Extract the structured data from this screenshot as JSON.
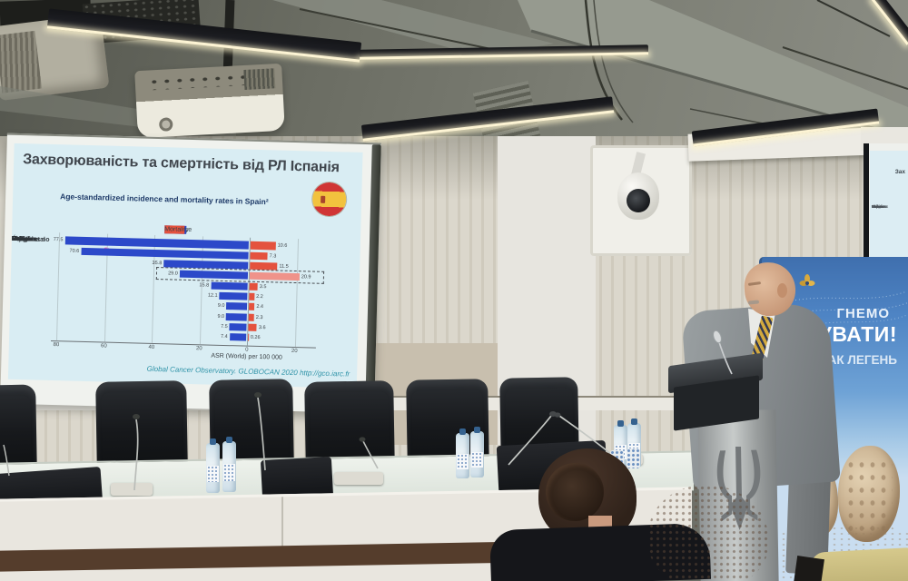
{
  "slide": {
    "title": "Захворюваність та смертність від РЛ Іспанія",
    "subtitle": "Age-standardized incidence and mortality rates in Spain²",
    "citation": "Global Cancer Observatory. GLOBOCAN 2020 http://gco.iarc.fr",
    "flag_icon": "spain-flag",
    "colors": {
      "slide_bg": "#d9edf3",
      "title": "#40464d",
      "subtitle": "#1e3a68",
      "citation": "#2f93a8"
    }
  },
  "chart_data": {
    "type": "bar",
    "orientation": "horizontal-diverging",
    "categories": [
      "Mama",
      "Próstata",
      "Colorrectal",
      "Pulmón",
      "Vejiga",
      "Útero",
      "Riñón",
      "Linfomas no Hodgkin",
      "Ovario",
      "Tiroides"
    ],
    "series": [
      {
        "name": "Incidence",
        "color": "#2c49c9",
        "values": [
          77.5,
          70.6,
          35.8,
          29.0,
          15.8,
          12.1,
          9.0,
          9.0,
          7.5,
          7.4
        ],
        "labels": [
          "77.5",
          "70.6",
          "35.8",
          "29.0",
          "15.8",
          "12.1",
          "9.0",
          "9.0",
          "7.5",
          "7.4"
        ]
      },
      {
        "name": "Mortality",
        "color": "#e4523e",
        "values": [
          10.6,
          7.3,
          11.5,
          20.9,
          3.5,
          2.2,
          2.4,
          2.3,
          3.6,
          0.26
        ],
        "labels": [
          "10.6",
          "7.3",
          "11.5",
          "20.9",
          "3.5",
          "2.2",
          "2.4",
          "2.3",
          "3.6",
          "0.26"
        ]
      }
    ],
    "highlight_category": "Pulmón",
    "highlight_color": "#ef938a",
    "xlabel": "ASR (World) per 100 000",
    "tick_labels": [
      "80",
      "60",
      "40",
      "20",
      "0",
      "20"
    ],
    "tick_positions": [
      -80,
      -60,
      -40,
      -20,
      0,
      20
    ],
    "axis_range": [
      -80,
      30
    ],
    "grid": true,
    "legend_position": "top-right",
    "annotations": [
      "dashed box around Pulmón row",
      "laser pointer dot on Próstata bar"
    ]
  },
  "banner": {
    "logo_fragment": "еса",
    "line1": "ГНЕМО",
    "line2": "КУВАТИ!",
    "line3": "РАК ЛЕГЕНЬ",
    "colors": {
      "top": "#4e84c4",
      "sky": "#a9cbe7",
      "sand": "#d0b996"
    }
  },
  "second_screen": {
    "title_fragment": "Зах"
  },
  "scene_colors": {
    "ceiling": "#6b6d63",
    "wall": "#d6d2c6",
    "chairs": "#17191c",
    "suit": "#83888b",
    "pillar": "#aeb2b2"
  }
}
